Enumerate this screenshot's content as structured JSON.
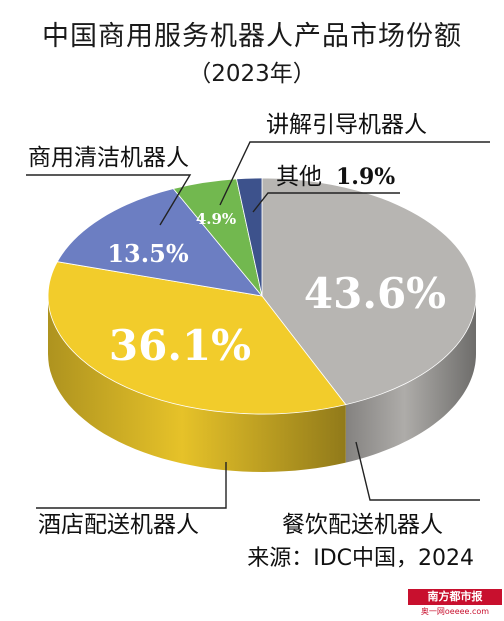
{
  "title": "中国商用服务机器人产品市场份额",
  "subtitle": "（2023年）",
  "source": "来源：IDC中国，2024",
  "logo": {
    "name": "南方都市报",
    "sub": "奥一网oeeee.com"
  },
  "colors": {
    "gray": "#b7b5b2",
    "yellow": "#f2cc2b",
    "blue": "#6c7ec2",
    "green": "#72b84f",
    "navy": "#3d528c"
  },
  "chart_data": {
    "type": "pie",
    "title": "中国商用服务机器人产品市场份额",
    "subtitle": "（2023年）",
    "series": [
      {
        "name": "餐饮配送机器人",
        "value": 43.6,
        "label": "43.6%",
        "color": "#b7b5b2"
      },
      {
        "name": "酒店配送机器人",
        "value": 36.1,
        "label": "36.1%",
        "color": "#f2cc2b"
      },
      {
        "name": "商用清洁机器人",
        "value": 13.5,
        "label": "13.5%",
        "color": "#6c7ec2"
      },
      {
        "name": "讲解引导机器人",
        "value": 4.9,
        "label": "4.9%",
        "color": "#72b84f"
      },
      {
        "name": "其他",
        "value": 1.9,
        "label": "1.9%",
        "color": "#3d528c"
      }
    ]
  }
}
